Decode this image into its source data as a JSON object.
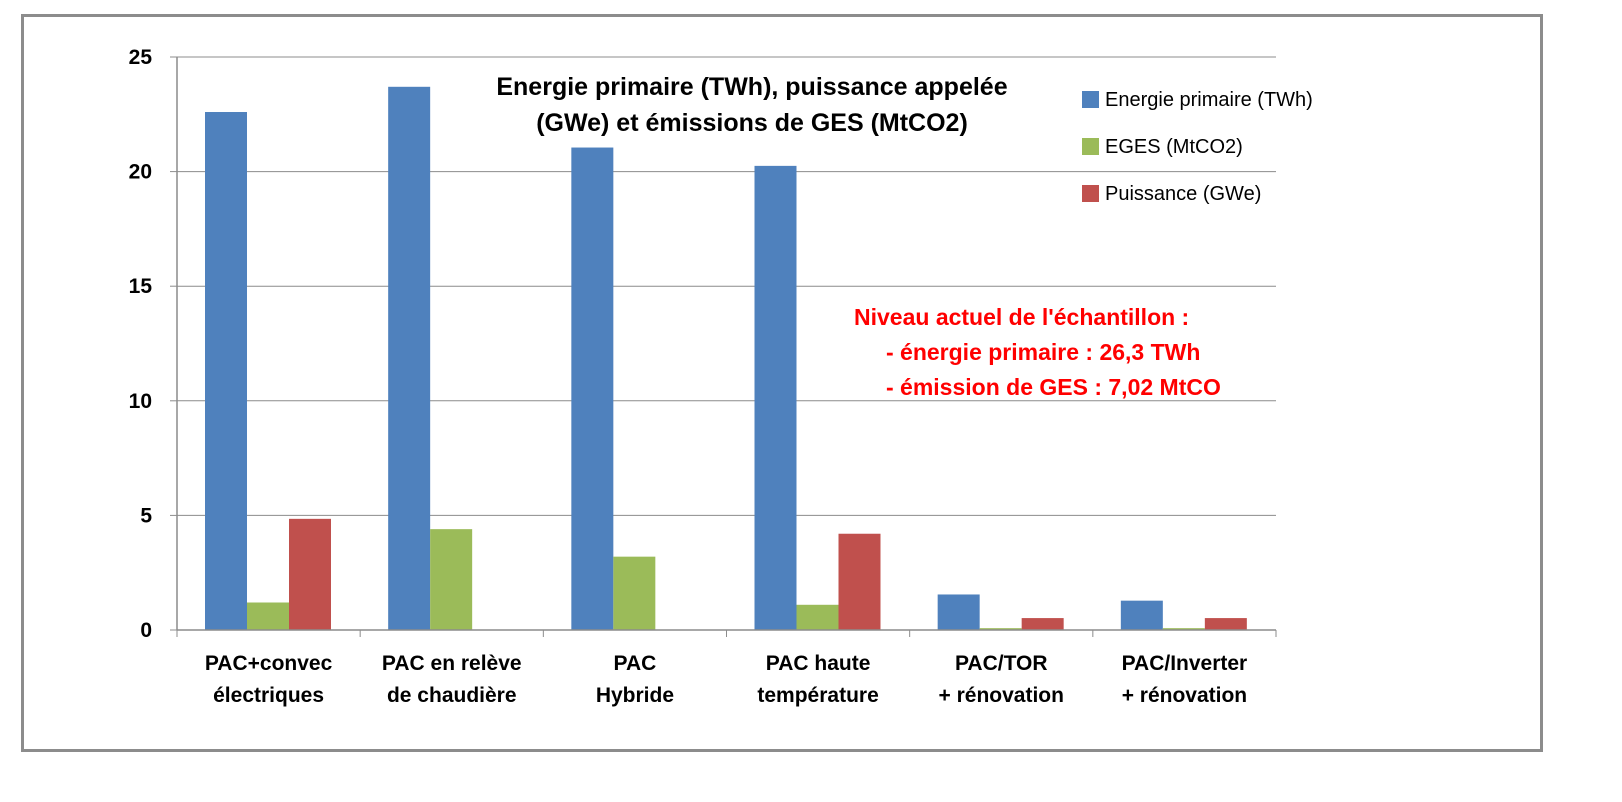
{
  "chart_data": {
    "type": "bar",
    "title": "Energie primaire (TWh), puissance appelée (GWe) et émissions de GES (MtCO2)",
    "title_lines": [
      "Energie primaire (TWh), puissance appelée",
      "(GWe) et émissions de GES (MtCO2)"
    ],
    "categories": [
      [
        "PAC+convec",
        "électriques"
      ],
      [
        "PAC en relève",
        "de chaudière"
      ],
      [
        "PAC",
        "Hybride"
      ],
      [
        "PAC haute",
        "température"
      ],
      [
        "PAC/TOR",
        "+ rénovation"
      ],
      [
        "PAC/Inverter",
        "+ rénovation"
      ]
    ],
    "series": [
      {
        "name": "Energie primaire (TWh)",
        "color": "#4f81bd",
        "values": [
          22.6,
          23.7,
          21.05,
          20.25,
          1.55,
          1.28
        ]
      },
      {
        "name": "EGES (MtCO2)",
        "color": "#9bbb59",
        "values": [
          1.2,
          4.4,
          3.2,
          1.1,
          0.08,
          0.08
        ]
      },
      {
        "name": "Puissance (GWe)",
        "color": "#c0504d",
        "values": [
          4.85,
          0,
          0,
          4.2,
          0.52,
          0.52
        ]
      }
    ],
    "ylim": [
      0,
      25
    ],
    "yticks": [
      0,
      5,
      10,
      15,
      20,
      25
    ],
    "grid": true,
    "legend_position": "top-right",
    "annotation": {
      "color": "#ff0000",
      "lines": [
        "Niveau actuel de l'échantillon :",
        "- énergie primaire  : 26,3 TWh",
        "- émission de GES : 7,02 MtCO"
      ]
    }
  }
}
